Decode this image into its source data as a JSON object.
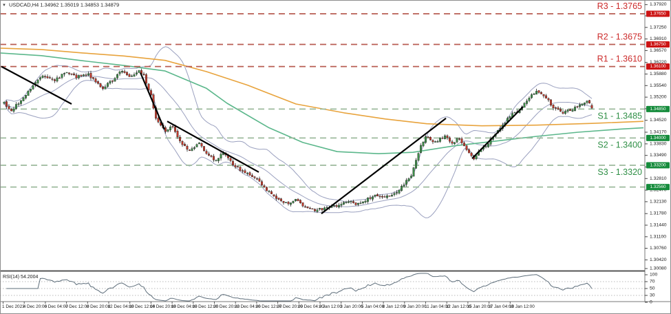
{
  "title": {
    "marker": "▼",
    "text": "USDCAD,H4 1.34962 1.35019 1.34853 1.34879"
  },
  "colors": {
    "bull": "#3E8E49",
    "bear": "#C0392B",
    "wick": "#3a3a3a",
    "bands": "#9aa0bf",
    "ma_orange": "#E8A33C",
    "ma_teal": "#5BB78B",
    "resistance_line": "#B85C52",
    "resistance_text": "#CC2B2B",
    "resistance_box": "#CC1414",
    "support_line": "#9CBA9C",
    "support_text": "#2F8F46",
    "support_box": "#168C3C",
    "trendline": "#000000",
    "rsi_line": "#5d6d7a",
    "rsi_dotted": "#b8b8b8",
    "axis_text": "#1a1a1a",
    "frame": "#8c8c8c"
  },
  "chart_data": {
    "type": "candlestick",
    "symbol": "USDCAD",
    "timeframe": "H4",
    "last_bar": {
      "open": 1.34962,
      "high": 1.35019,
      "low": 1.34853,
      "close": 1.34879
    },
    "levels": [
      {
        "name": "R3",
        "label": "R3 - 1.3765",
        "price": 1.3765,
        "axis_label": "1.37650",
        "kind": "resistance"
      },
      {
        "name": "R2",
        "label": "R2 - 1.3675",
        "price": 1.3675,
        "axis_label": "1.36750",
        "kind": "resistance"
      },
      {
        "name": "R1",
        "label": "R1 - 1.3610",
        "price": 1.361,
        "axis_label": "1.36100",
        "kind": "resistance"
      },
      {
        "name": "S1",
        "label": "S1 - 1.3485",
        "price": 1.3485,
        "axis_label": "1.34850",
        "kind": "support"
      },
      {
        "name": "S2",
        "label": "S2 - 1.3400",
        "price": 1.34,
        "axis_label": "1.34000",
        "kind": "support"
      },
      {
        "name": "S3",
        "label": "S3 - 1.3320",
        "price": 1.332,
        "axis_label": "1.33200",
        "kind": "support"
      },
      {
        "name": "S4",
        "label": "",
        "price": 1.3256,
        "axis_label": "1.32560",
        "kind": "support"
      }
    ],
    "y_ticks": [
      "1.37920",
      "1.37590",
      "1.37250",
      "1.36910",
      "1.36570",
      "1.36220",
      "1.35880",
      "1.35540",
      "1.35200",
      "1.34860",
      "1.34520",
      "1.34170",
      "1.33830",
      "1.33490",
      "1.33150",
      "1.32810",
      "1.32470",
      "1.32130",
      "1.31780",
      "1.31440",
      "1.31100",
      "1.30760",
      "1.30420",
      "1.30080"
    ],
    "x_labels": [
      "1 Dec 2023",
      "4 Dec 20:00",
      "6 Dec 04:00",
      "7 Dec 12:00",
      "8 Dec 20:00",
      "12 Dec 04:00",
      "13 Dec 12:00",
      "14 Dec 20:00",
      "18 Dec 04:00",
      "19 Dec 12:00",
      "20 Dec 20:00",
      "22 Dec 04:00",
      "26 Dec 12:00",
      "27 Dec 20:00",
      "29 Dec 04:00",
      "2 Jan 12:00",
      "3 Jan 20:00",
      "5 Jan 04:00",
      "8 Jan 12:00",
      "9 Jan 20:00",
      "11 Jan 04:00",
      "12 Jan 12:00",
      "15 Jan 20:00",
      "17 Jan 04:00",
      "18 Jan 12:00"
    ],
    "price_path": [
      [
        0,
        1.3502
      ],
      [
        3,
        1.3478
      ],
      [
        4,
        1.3486
      ],
      [
        11,
        1.3547
      ],
      [
        16,
        1.3587
      ],
      [
        21,
        1.3567
      ],
      [
        25,
        1.3593
      ],
      [
        30,
        1.3579
      ],
      [
        35,
        1.3587
      ],
      [
        41,
        1.3547
      ],
      [
        44,
        1.3563
      ],
      [
        49,
        1.3597
      ],
      [
        53,
        1.3579
      ],
      [
        56,
        1.3601
      ],
      [
        58,
        1.3583
      ],
      [
        61,
        1.3522
      ],
      [
        63,
        1.3462
      ],
      [
        67,
        1.3417
      ],
      [
        70,
        1.3435
      ],
      [
        73,
        1.3391
      ],
      [
        77,
        1.3364
      ],
      [
        81,
        1.3389
      ],
      [
        84,
        1.335
      ],
      [
        88,
        1.3334
      ],
      [
        91,
        1.3358
      ],
      [
        95,
        1.332
      ],
      [
        100,
        1.3296
      ],
      [
        104,
        1.3284
      ],
      [
        108,
        1.3255
      ],
      [
        113,
        1.3223
      ],
      [
        117,
        1.3207
      ],
      [
        121,
        1.3221
      ],
      [
        125,
        1.3199
      ],
      [
        129,
        1.3186
      ],
      [
        133,
        1.3194
      ],
      [
        136,
        1.3199
      ],
      [
        140,
        1.3205
      ],
      [
        143,
        1.3217
      ],
      [
        147,
        1.3205
      ],
      [
        151,
        1.3221
      ],
      [
        155,
        1.3233
      ],
      [
        158,
        1.3223
      ],
      [
        163,
        1.3243
      ],
      [
        166,
        1.3263
      ],
      [
        169,
        1.3288
      ],
      [
        173,
        1.3375
      ],
      [
        175,
        1.3401
      ],
      [
        179,
        1.3389
      ],
      [
        183,
        1.3407
      ],
      [
        186,
        1.3385
      ],
      [
        189,
        1.3401
      ],
      [
        193,
        1.3356
      ],
      [
        195,
        1.3342
      ],
      [
        199,
        1.3371
      ],
      [
        203,
        1.3401
      ],
      [
        206,
        1.3431
      ],
      [
        210,
        1.3462
      ],
      [
        214,
        1.3486
      ],
      [
        218,
        1.3522
      ],
      [
        221,
        1.3539
      ],
      [
        225,
        1.3516
      ],
      [
        228,
        1.3492
      ],
      [
        232,
        1.3476
      ],
      [
        236,
        1.3486
      ],
      [
        240,
        1.3498
      ],
      [
        242,
        1.3508
      ],
      [
        244,
        1.34879
      ]
    ],
    "ma_orange": [
      [
        0,
        1.3664
      ],
      [
        60,
        1.366
      ],
      [
        120,
        1.365
      ],
      [
        180,
        1.3641
      ],
      [
        240,
        1.3628
      ],
      [
        300,
        1.3595
      ],
      [
        360,
        1.3555
      ],
      [
        430,
        1.35
      ],
      [
        500,
        1.3474
      ],
      [
        560,
        1.3456
      ],
      [
        620,
        1.3442
      ],
      [
        700,
        1.3436
      ],
      [
        780,
        1.3438
      ],
      [
        860,
        1.3443
      ],
      [
        935,
        1.3449
      ]
    ],
    "ma_teal": [
      [
        0,
        1.365
      ],
      [
        60,
        1.3642
      ],
      [
        120,
        1.3627
      ],
      [
        180,
        1.3613
      ],
      [
        240,
        1.3597
      ],
      [
        300,
        1.3546
      ],
      [
        330,
        1.3502
      ],
      [
        390,
        1.3431
      ],
      [
        440,
        1.3387
      ],
      [
        490,
        1.336
      ],
      [
        550,
        1.3354
      ],
      [
        600,
        1.3358
      ],
      [
        660,
        1.3377
      ],
      [
        720,
        1.3391
      ],
      [
        780,
        1.3405
      ],
      [
        840,
        1.3417
      ],
      [
        900,
        1.3426
      ],
      [
        935,
        1.343
      ]
    ],
    "trendlines": [
      [
        2,
        1.361,
        104,
        1.35
      ],
      [
        204,
        1.3592,
        239,
        1.3425
      ],
      [
        243,
        1.3449,
        376,
        1.33
      ],
      [
        467,
        1.3178,
        648,
        1.3458
      ],
      [
        686,
        1.334,
        760,
        1.3492
      ]
    ],
    "bollinger": {
      "period": 20,
      "deviation": 2
    },
    "rsi": {
      "label": "RSI(14) 54.2004",
      "period": 14,
      "value": 54.2004,
      "levels": [
        70,
        50,
        30
      ],
      "scale_labels": [
        "100",
        "70",
        "50",
        "30",
        "0"
      ]
    }
  }
}
